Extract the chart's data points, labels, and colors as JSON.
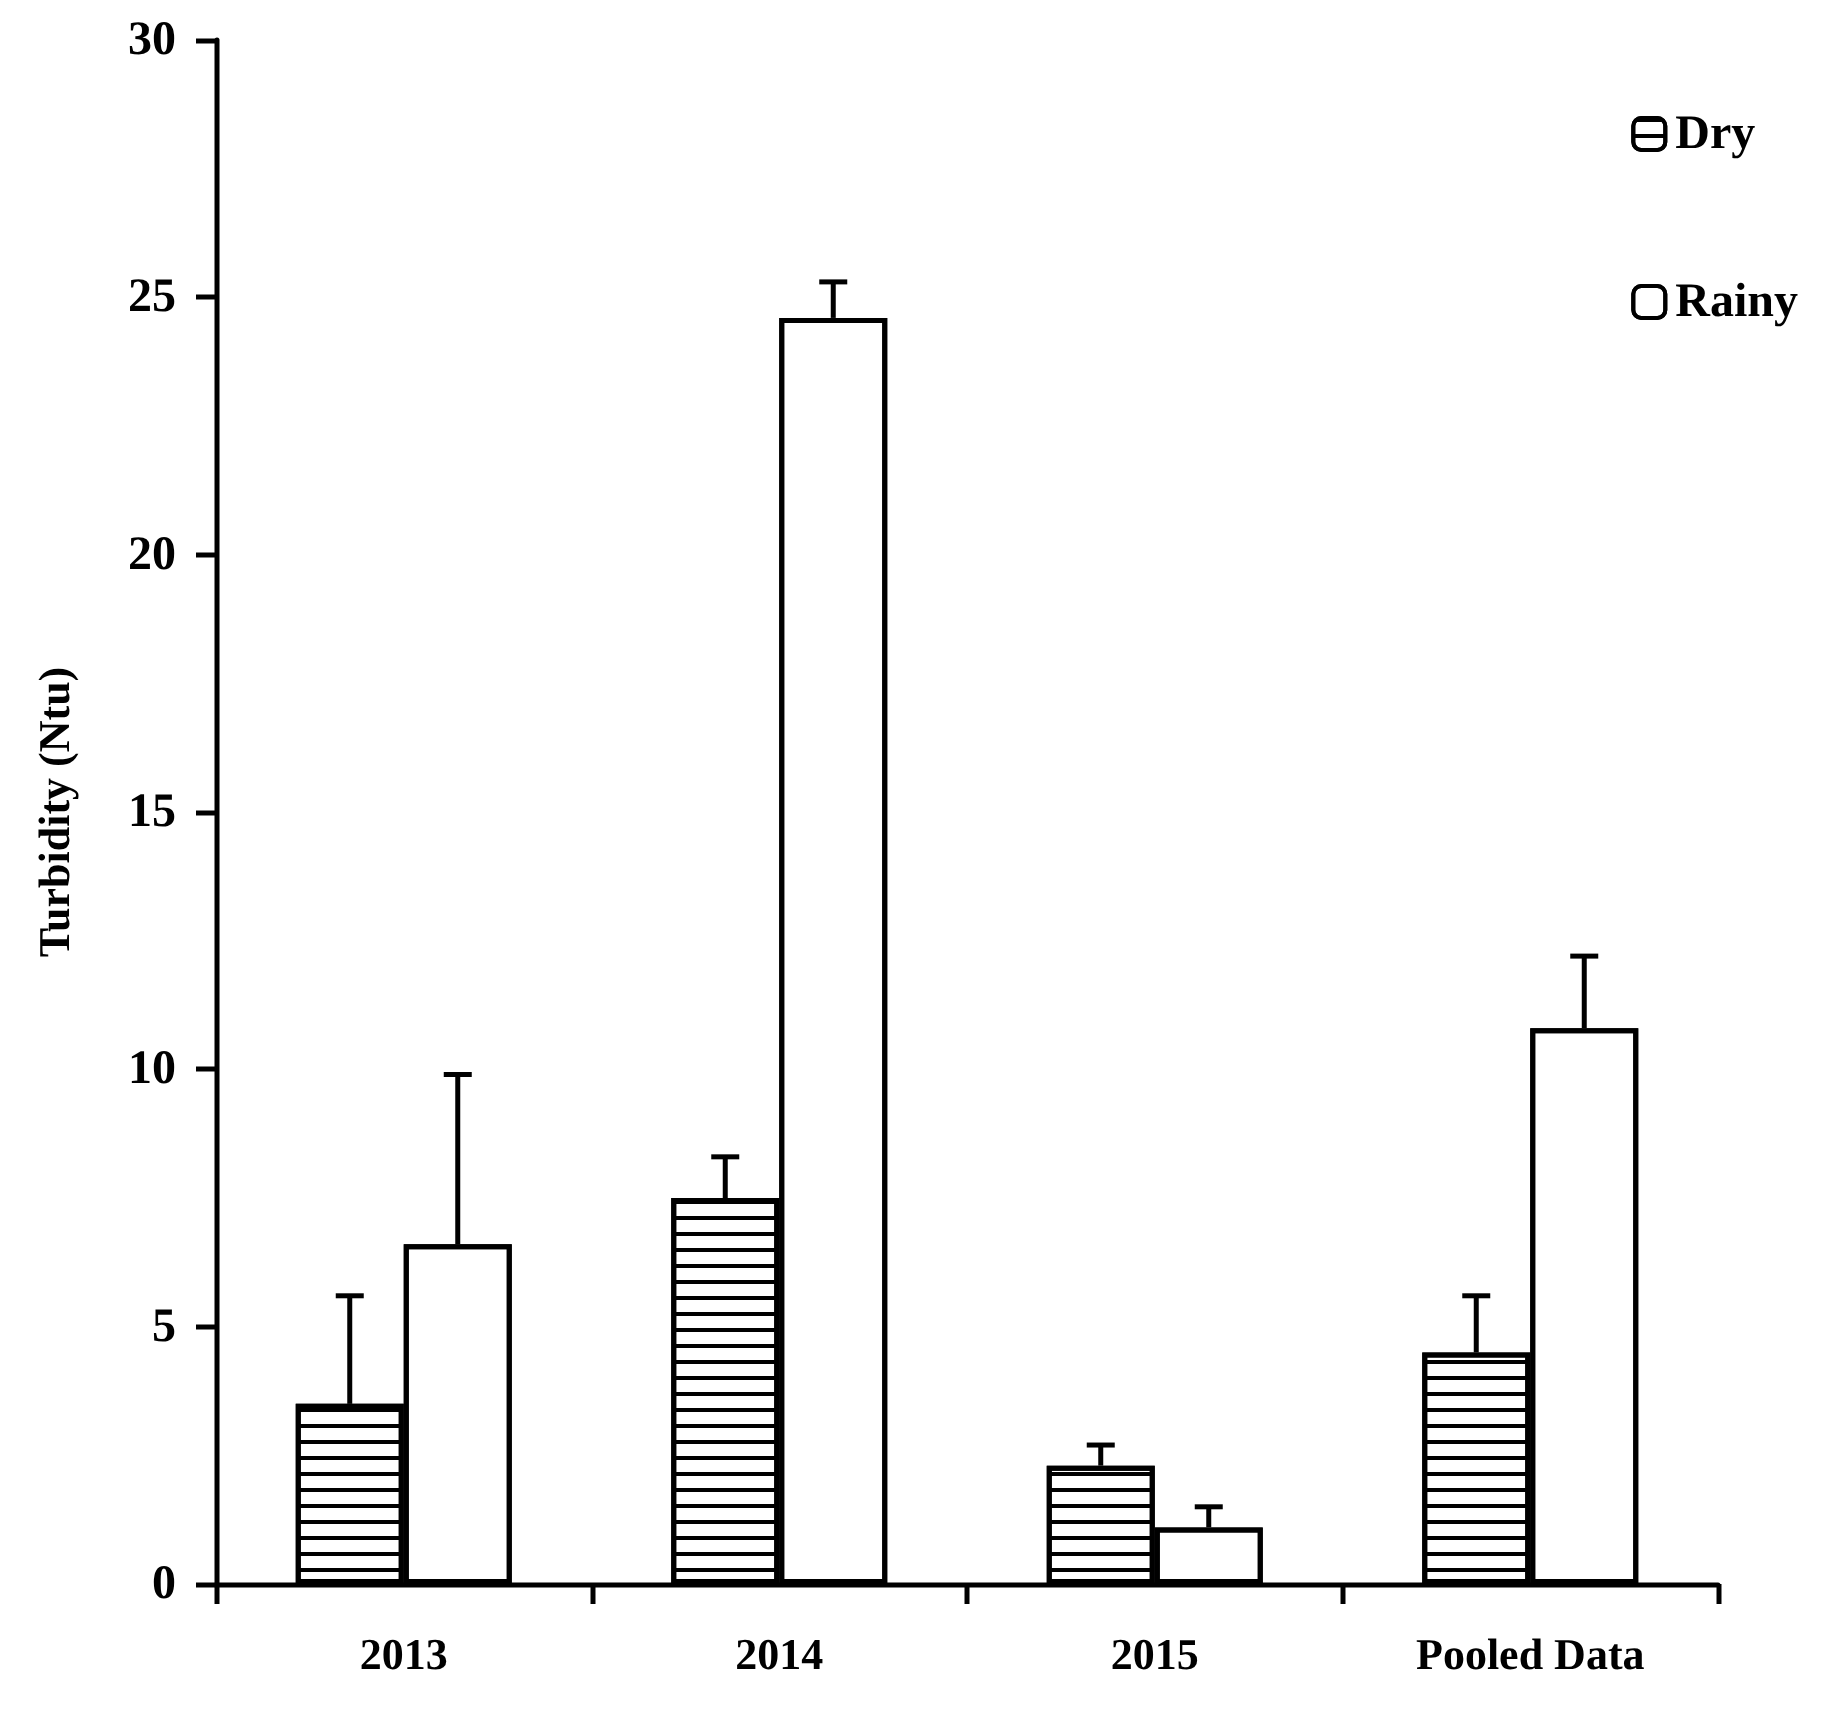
{
  "chart_data": {
    "type": "bar",
    "ylabel": "Turbidity (Ntu)",
    "categories": [
      "2013",
      "2014",
      "2015",
      "Pooled Data"
    ],
    "series": [
      {
        "name": "Dry",
        "color": "#ffffff",
        "values": [
          3.5,
          7.5,
          2.3,
          4.5
        ],
        "errors": [
          2.1,
          0.8,
          0.4,
          1.1
        ]
      },
      {
        "name": "Rainy",
        "color": "#ffffff",
        "values": [
          6.6,
          24.6,
          1.1,
          10.8
        ],
        "errors": [
          3.3,
          0.7,
          0.4,
          1.4
        ]
      }
    ],
    "ylim": [
      0,
      30
    ],
    "yticks": [
      0,
      5,
      10,
      15,
      20,
      25,
      30
    ],
    "grid": false,
    "legend": "top right"
  }
}
